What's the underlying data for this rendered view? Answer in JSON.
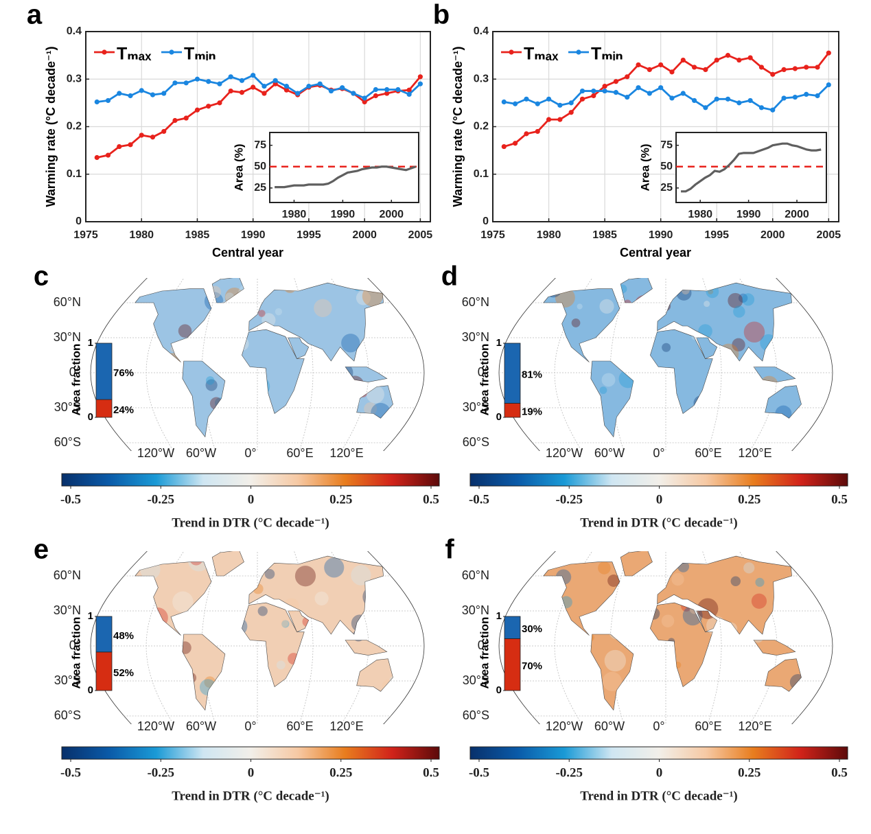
{
  "chart_data": [
    {
      "type": "line",
      "label": "a",
      "xlabel": "Central year",
      "ylabel": "Warming rate (°C decade⁻¹)",
      "x": [
        1976,
        1977,
        1978,
        1979,
        1980,
        1981,
        1982,
        1983,
        1984,
        1985,
        1986,
        1987,
        1988,
        1989,
        1990,
        1991,
        1992,
        1993,
        1994,
        1995,
        1996,
        1997,
        1998,
        1999,
        2000,
        2001,
        2002,
        2003,
        2004,
        2005
      ],
      "xlim": [
        1975,
        2005.9
      ],
      "xticks": [
        1975,
        1980,
        1985,
        1990,
        1995,
        2000,
        2005
      ],
      "ylim": [
        0,
        0.4
      ],
      "yticks": [
        0,
        0.1,
        0.2,
        0.3,
        0.4
      ],
      "grid": true,
      "series": [
        {
          "name": "Tₘₐₓ",
          "color": "#e8221c",
          "values": [
            0.135,
            0.14,
            0.158,
            0.162,
            0.182,
            0.178,
            0.19,
            0.213,
            0.218,
            0.235,
            0.243,
            0.25,
            0.275,
            0.272,
            0.283,
            0.27,
            0.29,
            0.277,
            0.267,
            0.283,
            0.287,
            0.277,
            0.28,
            0.27,
            0.252,
            0.265,
            0.27,
            0.275,
            0.277,
            0.305
          ]
        },
        {
          "name": "Tₘᵢₙ",
          "color": "#1a86e0",
          "values": [
            0.252,
            0.255,
            0.27,
            0.265,
            0.276,
            0.267,
            0.27,
            0.292,
            0.292,
            0.3,
            0.295,
            0.29,
            0.305,
            0.297,
            0.308,
            0.285,
            0.297,
            0.285,
            0.27,
            0.285,
            0.29,
            0.275,
            0.282,
            0.27,
            0.26,
            0.278,
            0.278,
            0.278,
            0.268,
            0.29
          ]
        }
      ],
      "inset": {
        "ylabel": "Area (%)",
        "x": [
          1976,
          1977,
          1978,
          1979,
          1980,
          1981,
          1982,
          1983,
          1984,
          1985,
          1986,
          1987,
          1988,
          1989,
          1990,
          1991,
          1992,
          1993,
          1994,
          1995,
          1996,
          1997,
          1998,
          1999,
          2000,
          2001,
          2002,
          2003,
          2004,
          2005
        ],
        "xlim": [
          1975,
          2005.6
        ],
        "xticks": [
          1980,
          1990,
          2000
        ],
        "ylim": [
          8,
          90
        ],
        "yticks": [
          25,
          50,
          75
        ],
        "hline": 50,
        "hline_color": "#e8221c",
        "series": [
          {
            "color": "#5f5f5f",
            "values": [
              26,
              26,
              26,
              27,
              28,
              28,
              28,
              29,
              29,
              29,
              29,
              30,
              33,
              37,
              40,
              43,
              44,
              45,
              47,
              48,
              49,
              49,
              50,
              50,
              49,
              48,
              47,
              46,
              48,
              50
            ]
          }
        ]
      }
    },
    {
      "type": "line",
      "label": "b",
      "xlabel": "Central year",
      "ylabel": "Warming rate (°C decade⁻¹)",
      "x": [
        1976,
        1977,
        1978,
        1979,
        1980,
        1981,
        1982,
        1983,
        1984,
        1985,
        1986,
        1987,
        1988,
        1989,
        1990,
        1991,
        1992,
        1993,
        1994,
        1995,
        1996,
        1997,
        1998,
        1999,
        2000,
        2001,
        2002,
        2003,
        2004,
        2005
      ],
      "xlim": [
        1975,
        2005.9
      ],
      "xticks": [
        1975,
        1980,
        1985,
        1990,
        1995,
        2000,
        2005
      ],
      "ylim": [
        0,
        0.4
      ],
      "yticks": [
        0,
        0.1,
        0.2,
        0.3,
        0.4
      ],
      "grid": true,
      "series": [
        {
          "name": "Tₘₐₓ",
          "color": "#e8221c",
          "values": [
            0.158,
            0.165,
            0.185,
            0.19,
            0.215,
            0.215,
            0.23,
            0.258,
            0.265,
            0.285,
            0.295,
            0.305,
            0.33,
            0.32,
            0.33,
            0.315,
            0.34,
            0.325,
            0.32,
            0.34,
            0.35,
            0.34,
            0.345,
            0.325,
            0.31,
            0.32,
            0.322,
            0.325,
            0.325,
            0.355
          ]
        },
        {
          "name": "Tₘᵢₙ",
          "color": "#1a86e0",
          "values": [
            0.252,
            0.248,
            0.258,
            0.248,
            0.258,
            0.245,
            0.25,
            0.275,
            0.275,
            0.275,
            0.272,
            0.262,
            0.282,
            0.27,
            0.282,
            0.26,
            0.27,
            0.255,
            0.24,
            0.258,
            0.258,
            0.25,
            0.255,
            0.24,
            0.235,
            0.26,
            0.262,
            0.268,
            0.265,
            0.288
          ]
        }
      ],
      "inset": {
        "ylabel": "Area (%)",
        "x": [
          1976,
          1977,
          1978,
          1979,
          1980,
          1981,
          1982,
          1983,
          1984,
          1985,
          1986,
          1987,
          1988,
          1989,
          1990,
          1991,
          1992,
          1993,
          1994,
          1995,
          1996,
          1997,
          1998,
          1999,
          2000,
          2001,
          2002,
          2003,
          2004,
          2005
        ],
        "xlim": [
          1975,
          2006.1
        ],
        "xticks": [
          1980,
          1990,
          2000
        ],
        "ylim": [
          8,
          90
        ],
        "yticks": [
          25,
          50,
          75
        ],
        "hline": 50,
        "hline_color": "#e8221c",
        "series": [
          {
            "color": "#5f5f5f",
            "values": [
              21,
              21,
              24,
              29,
              33,
              37,
              40,
              45,
              44,
              47,
              52,
              58,
              65,
              66,
              66,
              66,
              68,
              70,
              72,
              75,
              76,
              77,
              77,
              75,
              74,
              72,
              70,
              69,
              69,
              70
            ]
          }
        ]
      }
    },
    {
      "type": "map",
      "label": "c",
      "lat_labels": [
        "60°N",
        "30°N",
        "0°",
        "30°S",
        "60°S"
      ],
      "lon_labels": [
        "120°W",
        "60°W",
        "0°",
        "60°E",
        "120°E"
      ],
      "land_color": "#9cc4e4",
      "area_fraction": {
        "ylabel": "Area fraction",
        "ylim": [
          0,
          1
        ],
        "yticks": [
          0,
          1
        ],
        "values": [
          0.24,
          0.76
        ],
        "value_labels": [
          "24%",
          "76%"
        ],
        "colors": [
          "#d62d12",
          "#1b66b0"
        ]
      },
      "colorbar": {
        "xlim": [
          -0.5,
          0.5
        ],
        "xticks": [
          -0.5,
          -0.25,
          0,
          0.25,
          0.5
        ],
        "label": "Trend in DTR (°C decade⁻¹)",
        "colors": [
          "#08306b",
          "#0a5aa8",
          "#1a9ad6",
          "#cfe6f2",
          "#f2efe9",
          "#f6c9a4",
          "#e87d1e",
          "#d1231a",
          "#5c0a0a"
        ]
      }
    },
    {
      "type": "map",
      "label": "d",
      "lat_labels": [
        "60°N",
        "30°N",
        "0°",
        "30°S",
        "60°S"
      ],
      "lon_labels": [
        "120°W",
        "60°W",
        "0°",
        "60°E",
        "120°E"
      ],
      "land_color": "#86b9e0",
      "area_fraction": {
        "ylabel": "Area fraction",
        "ylim": [
          0,
          1
        ],
        "yticks": [
          0,
          1
        ],
        "values": [
          0.19,
          0.81
        ],
        "value_labels": [
          "19%",
          "81%"
        ],
        "colors": [
          "#d62d12",
          "#1b66b0"
        ]
      },
      "colorbar": {
        "xlim": [
          -0.5,
          0.5
        ],
        "xticks": [
          -0.5,
          -0.25,
          0,
          0.25,
          0.5
        ],
        "label": "Trend in DTR (°C decade⁻¹)",
        "colors": [
          "#08306b",
          "#0a5aa8",
          "#1a9ad6",
          "#cfe6f2",
          "#f2efe9",
          "#f6c9a4",
          "#e87d1e",
          "#d1231a",
          "#5c0a0a"
        ]
      }
    },
    {
      "type": "map",
      "label": "e",
      "lat_labels": [
        "60°N",
        "30°N",
        "0°",
        "30°S",
        "60°S"
      ],
      "lon_labels": [
        "120°W",
        "60°W",
        "0°",
        "60°E",
        "120°E"
      ],
      "land_color": "#f1cfb4",
      "area_fraction": {
        "ylabel": "Area fraction",
        "ylim": [
          0,
          1
        ],
        "yticks": [
          0,
          1
        ],
        "values": [
          0.52,
          0.48
        ],
        "value_labels": [
          "52%",
          "48%"
        ],
        "colors": [
          "#d62d12",
          "#1b66b0"
        ]
      },
      "colorbar": {
        "xlim": [
          -0.5,
          0.5
        ],
        "xticks": [
          -0.5,
          -0.25,
          0,
          0.25,
          0.5
        ],
        "label": "Trend in DTR (°C decade⁻¹)",
        "colors": [
          "#08306b",
          "#0a5aa8",
          "#1a9ad6",
          "#cfe6f2",
          "#f2efe9",
          "#f6c9a4",
          "#e87d1e",
          "#d1231a",
          "#5c0a0a"
        ]
      }
    },
    {
      "type": "map",
      "label": "f",
      "lat_labels": [
        "60°N",
        "30°N",
        "0°",
        "30°S",
        "60°S"
      ],
      "lon_labels": [
        "120°W",
        "60°W",
        "0°",
        "60°E",
        "120°E"
      ],
      "land_color": "#eaa874",
      "area_fraction": {
        "ylabel": "Area fraction",
        "ylim": [
          0,
          1
        ],
        "yticks": [
          0,
          1
        ],
        "values": [
          0.7,
          0.3
        ],
        "value_labels": [
          "70%",
          "30%"
        ],
        "colors": [
          "#d62d12",
          "#1b66b0"
        ]
      },
      "colorbar": {
        "xlim": [
          -0.5,
          0.5
        ],
        "xticks": [
          -0.5,
          -0.25,
          0,
          0.25,
          0.5
        ],
        "label": "Trend in DTR (°C decade⁻¹)",
        "colors": [
          "#08306b",
          "#0a5aa8",
          "#1a9ad6",
          "#cfe6f2",
          "#f2efe9",
          "#f6c9a4",
          "#e87d1e",
          "#d1231a",
          "#5c0a0a"
        ]
      }
    }
  ]
}
